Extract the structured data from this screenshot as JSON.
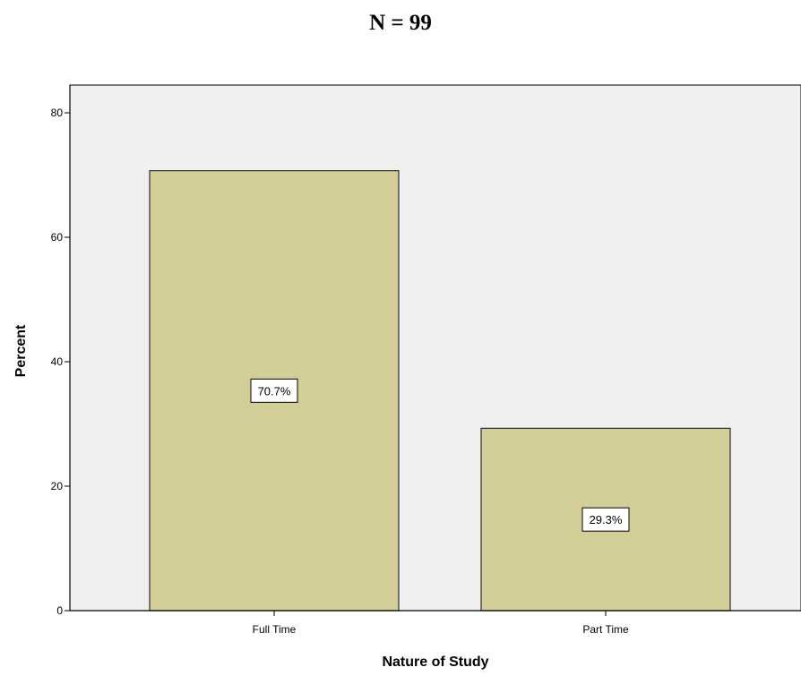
{
  "header": {
    "title": "N = 99"
  },
  "colors": {
    "plot_background": "#f0f0f0",
    "bar_fill": "#d3ce97",
    "bar_stroke": "#2e2e2e",
    "axis": "#000000"
  },
  "chart_data": {
    "type": "bar",
    "title": "",
    "xlabel": "Nature of Study",
    "ylabel": "Percent",
    "categories": [
      "Full Time",
      "Part Time"
    ],
    "values": [
      70.7,
      29.3
    ],
    "data_labels": [
      "70.7%",
      "29.3%"
    ],
    "ylim": [
      0,
      80
    ],
    "y_ticks": [
      0,
      20,
      40,
      60,
      80
    ],
    "grid": false,
    "legend": "none"
  }
}
